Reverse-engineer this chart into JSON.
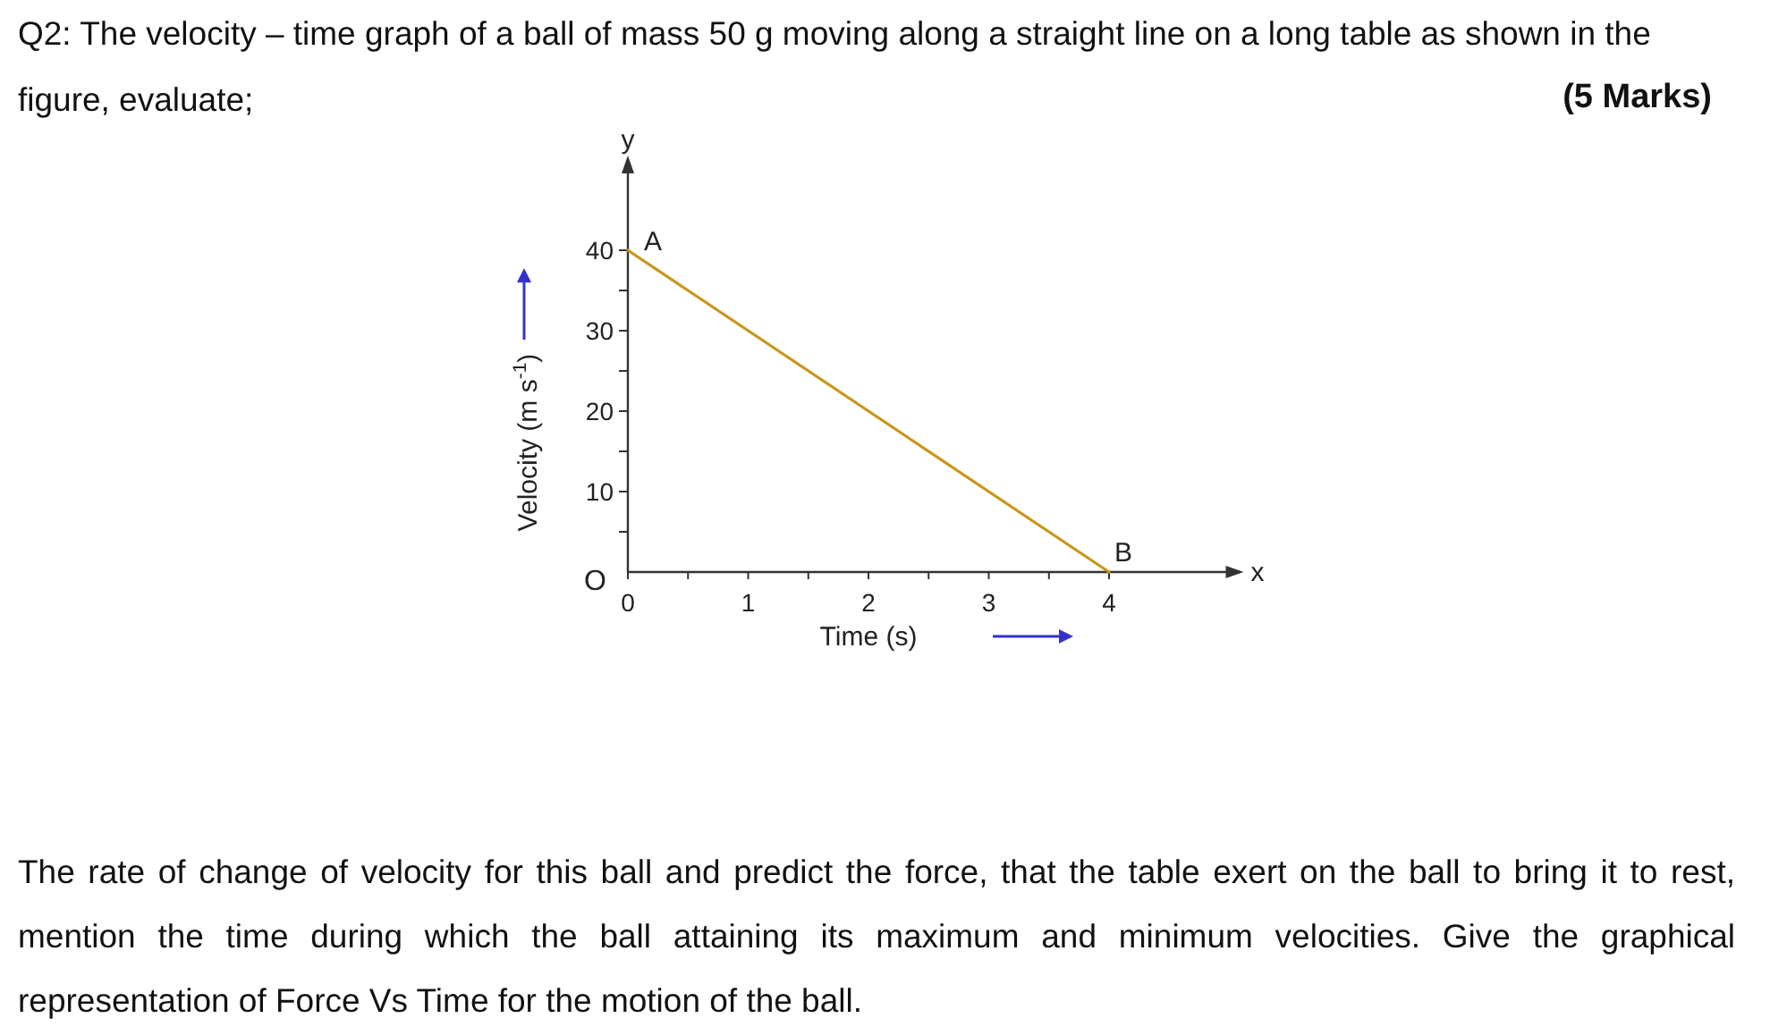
{
  "chart_data": {
    "type": "line",
    "title": "Q2: The velocity – time graph of a ball of mass 50 g moving along a straight line on a long table as shown in the figure, evaluate;",
    "xlabel": "Time (s)",
    "ylabel": "Velocity (m s$^{-1}$)",
    "x": [
      0,
      4
    ],
    "series": [
      {
        "color": "#c9961a",
        "values": [
          40,
          0
        ]
      }
    ],
    "xlim": [
      0,
      5
    ],
    "ylim": [
      0,
      50
    ],
    "xticks": [
      0,
      {
        "value": 0.5,
        "label": null
      },
      1,
      {
        "value": 1.5,
        "label": null
      },
      2,
      {
        "value": 2.5,
        "label": null
      },
      3,
      {
        "value": 3.5,
        "label": null
      },
      4
    ],
    "yticks": [
      {
        "value": 5,
        "label": null
      },
      10,
      {
        "value": 15,
        "label": null
      },
      20,
      {
        "value": 25,
        "label": null
      },
      30,
      {
        "value": 35,
        "label": null
      },
      40
    ],
    "marker": "none",
    "line_style": "solid",
    "annotations": [
      "(5 Marks)",
      {
        "text": "A",
        "x": 0,
        "y": 40
      },
      {
        "text": "B",
        "x": 4,
        "y": 0
      },
      "O",
      "x",
      "y",
      "The rate of change of velocity for this ball and predict the force, that the table exert on the ball to bring it to rest, mention the time during which the ball attaining its maximum and minimum velocities. Give the graphical representation of Force Vs Time for the motion of the ball."
    ]
  }
}
